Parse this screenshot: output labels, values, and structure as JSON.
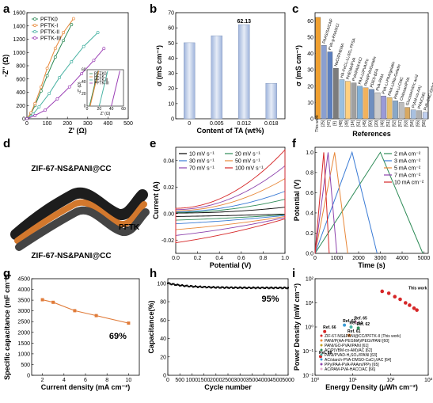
{
  "panel_labels": [
    "a",
    "b",
    "c",
    "d",
    "e",
    "f",
    "g",
    "h",
    "i"
  ],
  "chart_data": [
    {
      "panel": "a",
      "type": "line",
      "xlabel": "Z' (Ω)",
      "ylabel": "-Z'' (Ω)",
      "xlim": [
        0,
        500
      ],
      "ylim": [
        0,
        1600
      ],
      "xticks": [
        "0",
        "100",
        "200",
        "300",
        "400",
        "500"
      ],
      "yticks": [
        "0",
        "200",
        "400",
        "600",
        "800",
        "1000",
        "1200",
        "1400",
        "1600"
      ],
      "series": [
        {
          "name": "PFTK0",
          "color": "#2e8b57",
          "x": [
            0,
            20,
            40,
            70,
            100,
            140,
            180,
            220
          ],
          "y": [
            0,
            80,
            200,
            420,
            650,
            930,
            1180,
            1420
          ]
        },
        {
          "name": "PFTK-I",
          "color": "#e8883a",
          "x": [
            0,
            20,
            40,
            70,
            100,
            140,
            180,
            230
          ],
          "y": [
            0,
            90,
            230,
            480,
            760,
            1060,
            1300,
            1510
          ]
        },
        {
          "name": "PFTK-II",
          "color": "#4ab3a4",
          "x": [
            0,
            30,
            60,
            110,
            160,
            220,
            280,
            350
          ],
          "y": [
            0,
            70,
            180,
            380,
            620,
            860,
            1090,
            1300
          ]
        },
        {
          "name": "PFTK-III",
          "color": "#9b3fb5",
          "x": [
            0,
            40,
            90,
            150,
            210,
            270,
            330,
            380
          ],
          "y": [
            0,
            50,
            130,
            300,
            480,
            680,
            880,
            1060
          ]
        }
      ],
      "inset": {
        "xlim": [
          0,
          60
        ],
        "ylim": [
          0,
          60
        ],
        "xticks": [
          "0",
          "20",
          "40",
          "60"
        ],
        "yticks": [
          "0",
          "20",
          "40",
          "60"
        ],
        "xlabel": "Z' (Ω)",
        "ylabel": "-Z'' (Ω)"
      }
    },
    {
      "panel": "b",
      "type": "bar",
      "xlabel": "Content of TA (wt%)",
      "ylabel": "σ (mS cm⁻¹)",
      "categories": [
        "0",
        "0.005",
        "0.012",
        "0.018"
      ],
      "values": [
        50.2,
        54.8,
        62.13,
        23.4
      ],
      "data_labels": [
        "",
        "",
        "62.13",
        ""
      ],
      "ylim": [
        0,
        70
      ],
      "yticks": [
        "0",
        "10",
        "20",
        "30",
        "40",
        "50",
        "60",
        "70"
      ]
    },
    {
      "panel": "c",
      "type": "bar",
      "xlabel": "References",
      "ylabel": "σ (mS cm⁻¹)",
      "categories": [
        "This work",
        "[25]",
        "[47]",
        "[9]",
        "[48]",
        "[49]",
        "[14]",
        "[51]",
        "[45]",
        "[50]",
        "[20]",
        "[46]",
        "[51]",
        "[52]",
        "[57]",
        "[53]",
        "[54]",
        "[55]",
        "[56]"
      ],
      "values": [
        62.13,
        45,
        41,
        31,
        24,
        23,
        22,
        20,
        19,
        18,
        16,
        14,
        13,
        11,
        10,
        7,
        5.5,
        5,
        4
      ],
      "bar_labels": [
        "",
        "PAAS/SA/CNF",
        "PVA-g-PAA/KCl",
        "NaCl/PHEMA",
        "HA-FeCl₃-Li₂SO₄ PFSA",
        "PHEMA/PVA",
        "PVA/PAM-KCl",
        "PAA-Li/PVA/Fe",
        "PAM/PVA/Gelatin",
        "PDES-BFA",
        "PVA-PAM",
        "PVA-Li-PAA/gelatin",
        "PAM-Li/Na-Gelatin",
        "PAM-Li-CMC",
        "Chitosan/PVA",
        "Glucose/citric acid",
        "P(AM-co-AA)",
        "PFA/CMC",
        "PVA-CNC-Gelatin"
      ],
      "ylim": [
        0,
        65
      ],
      "yticks": [
        "0",
        "10",
        "20",
        "30",
        "40",
        "50",
        "60"
      ]
    },
    {
      "panel": "e",
      "type": "line",
      "xlabel": "Potential (V)",
      "ylabel": "Current (A)",
      "xlim": [
        0,
        1.0
      ],
      "ylim": [
        -0.03,
        0.05
      ],
      "xticks": [
        "0.0",
        "0.2",
        "0.4",
        "0.6",
        "0.8",
        "1.0"
      ],
      "yticks": [
        "-0.02",
        "0.00",
        "0.02",
        "0.04"
      ],
      "series": [
        {
          "name": "10 mV s⁻¹",
          "color": "#000000",
          "amp": 0.002
        },
        {
          "name": "20 mV s⁻¹",
          "color": "#2e8b57",
          "amp": 0.0045
        },
        {
          "name": "30 mV s⁻¹",
          "color": "#3a7bd5",
          "amp": 0.007
        },
        {
          "name": "50 mV s⁻¹",
          "color": "#e8883a",
          "amp": 0.011
        },
        {
          "name": "70 mV s⁻¹",
          "color": "#8e44ad",
          "amp": 0.015
        },
        {
          "name": "100 mV s⁻¹",
          "color": "#d62728",
          "amp": 0.02
        }
      ]
    },
    {
      "panel": "f",
      "type": "line",
      "xlabel": "Time (s)",
      "ylabel": "Potential (V)",
      "xlim": [
        0,
        5200
      ],
      "ylim": [
        0,
        1.05
      ],
      "xticks": [
        "0",
        "1000",
        "2000",
        "3000",
        "4000",
        "5000"
      ],
      "yticks": [
        "0.0",
        "0.2",
        "0.4",
        "0.6",
        "0.8",
        "1.0"
      ],
      "series": [
        {
          "name": "2 mA cm⁻²",
          "color": "#2e8b57",
          "t_charge": 3000,
          "t_end": 4950
        },
        {
          "name": "3 mA cm⁻²",
          "color": "#3a7bd5",
          "t_charge": 1700,
          "t_end": 2850
        },
        {
          "name": "5 mA cm⁻²",
          "color": "#e8883a",
          "t_charge": 900,
          "t_end": 1500
        },
        {
          "name": "7 mA cm⁻²",
          "color": "#8e44ad",
          "t_charge": 600,
          "t_end": 1000
        },
        {
          "name": "10 mA cm⁻²",
          "color": "#d62728",
          "t_charge": 400,
          "t_end": 650
        }
      ]
    },
    {
      "panel": "g",
      "type": "line",
      "xlabel": "Current density (mA cm⁻²)",
      "ylabel": "Specific capacitance (mF cm⁻²)",
      "x": [
        2,
        3,
        5,
        7,
        10
      ],
      "y": [
        3520,
        3400,
        3010,
        2780,
        2430
      ],
      "xlim": [
        1,
        11
      ],
      "ylim": [
        0,
        4500
      ],
      "xticks": [
        "2",
        "4",
        "6",
        "8",
        "10"
      ],
      "yticks": [
        "0",
        "500",
        "1000",
        "1500",
        "2000",
        "2500",
        "3000",
        "3500",
        "4000",
        "4500"
      ],
      "annotation": "69%",
      "color": "#e07b39"
    },
    {
      "panel": "h",
      "type": "scatter",
      "xlabel": "Cycle number",
      "ylabel": "Capacitance(%)",
      "xlim": [
        0,
        5000
      ],
      "ylim": [
        0,
        105
      ],
      "xticks": [
        "0",
        "500",
        "1000",
        "1500",
        "2000",
        "2500",
        "3000",
        "3500",
        "4000",
        "4500",
        "5000"
      ],
      "yticks": [
        "0",
        "20",
        "40",
        "60",
        "80",
        "100"
      ],
      "start": 100,
      "end": 95,
      "annotation": "95%"
    },
    {
      "panel": "i",
      "type": "scatter",
      "xlabel": "Energy Density (μWh cm⁻²)",
      "ylabel": "Power Density (mW cm⁻²)",
      "xscale": "log",
      "yscale": "log",
      "xlim": [
        1,
        1000
      ],
      "ylim": [
        0.01,
        100
      ],
      "xticks": [
        "10⁰",
        "10¹",
        "10²",
        "10³"
      ],
      "yticks": [
        "10⁻²",
        "10⁻¹",
        "10⁰",
        "10¹",
        "10²"
      ],
      "this_work": {
        "x": [
          60,
          90,
          130,
          180,
          250,
          320,
          420,
          500
        ],
        "y": [
          30,
          25,
          18,
          14,
          10,
          8,
          6,
          5
        ]
      },
      "this_work_label": "This work",
      "refs": [
        {
          "label": "Ref. 66",
          "x": 1.8,
          "y": 0.65,
          "color": "#d62728"
        },
        {
          "label": "Ref. 65",
          "x": 12,
          "y": 1.6,
          "color": "#e8b4d4"
        },
        {
          "label": "Ref. 63",
          "x": 6,
          "y": 1.2,
          "color": "#3a9bd5"
        },
        {
          "label": "Ref. 64",
          "x": 9,
          "y": 1.0,
          "color": "#4ab3a4"
        },
        {
          "label": "Ref. 62",
          "x": 14,
          "y": 0.9,
          "color": "#2e8b57"
        },
        {
          "label": "Ref. 61",
          "x": 8,
          "y": 0.45,
          "color": "#e8883a"
        },
        {
          "label": "Ref. 68",
          "x": 1.4,
          "y": 0.06,
          "color": "#d62728"
        }
      ],
      "legend": [
        {
          "label": "ZIF-67-NS&PANI@CC//PFTK-II (This work)",
          "color": "#d62728"
        },
        {
          "label": "PANI/P(AA-PEGMA)/PEG//PANI [60]",
          "color": "#e8883a"
        },
        {
          "label": "PANI/GO-PVA//PANI [61]",
          "color": "#c0a020"
        },
        {
          "label": "AC/P(VBM-co-AM)/AC [62]",
          "color": "#2e8b57"
        },
        {
          "label": "PANI/PVAD-H₂SO₄//PANI [63]",
          "color": "#4ab3a4"
        },
        {
          "label": "AC/starch-PVA-DMSO-CaCl₂//AC [64]",
          "color": "#3a9bd5"
        },
        {
          "label": "PPy/PAA-PVA-PAAm//PPy [65]",
          "color": "#8e44ad"
        },
        {
          "label": "AC/PAM-PVA-HACC/AC [66]",
          "color": "#e8b4d4"
        }
      ]
    }
  ],
  "diagram_d": {
    "top_label": "ZIF-67-NS&PANI@CC",
    "mid_label": "PFTK",
    "bottom_label": "ZIF-67-NS&PANI@CC"
  }
}
